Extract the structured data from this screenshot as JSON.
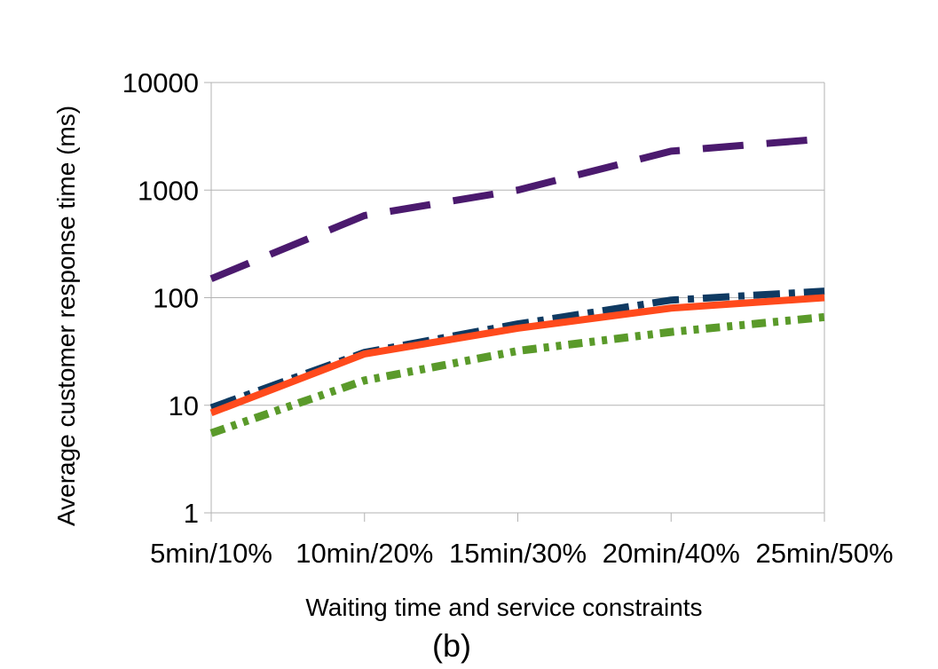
{
  "chart_data": {
    "type": "line",
    "title": "",
    "caption": "(b)",
    "xlabel": "Waiting time and service constraints",
    "ylabel": "Average customer response time (ms)",
    "yscale": "log",
    "ylim": [
      1,
      10000
    ],
    "yticks": [
      1,
      10,
      100,
      1000,
      10000
    ],
    "ytick_labels": [
      "1",
      "10",
      "100",
      "1000",
      "10000"
    ],
    "categories": [
      "5min/10%",
      "10min/20%",
      "15min/30%",
      "20min/40%",
      "25min/50%"
    ],
    "grid": "horizontal",
    "legend": "none",
    "series": [
      {
        "name": "purple dashed",
        "color": "#4b1a6e",
        "style": "long-dash",
        "values": [
          150,
          580,
          1000,
          2300,
          3000
        ]
      },
      {
        "name": "navy dash-dot",
        "color": "#0f3a62",
        "style": "dash-dot",
        "values": [
          9.5,
          31,
          57,
          95,
          115
        ]
      },
      {
        "name": "orange solid",
        "color": "#ff4a1c",
        "style": "solid",
        "values": [
          8.5,
          30,
          52,
          80,
          100
        ]
      },
      {
        "name": "green dash-dot-dot",
        "color": "#5a9a2a",
        "style": "dash-dot-dot",
        "values": [
          5.5,
          17,
          32,
          48,
          66
        ]
      }
    ]
  }
}
